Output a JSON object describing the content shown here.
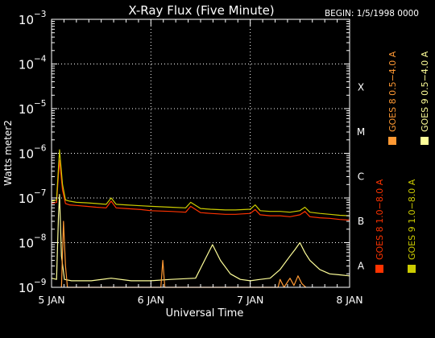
{
  "chart_data": {
    "type": "line",
    "title": "X-Ray Flux (Five Minute)",
    "begin_label": "BEGIN: 1/5/1998 0000",
    "xlabel": "Universal Time",
    "ylabel": "Watts meter2",
    "y_scale": "log",
    "ylim": [
      1e-09,
      0.001
    ],
    "xlim": [
      0,
      3
    ],
    "x_ticks": [
      {
        "v": 0,
        "label": "5 JAN"
      },
      {
        "v": 1,
        "label": "6 JAN"
      },
      {
        "v": 2,
        "label": "7 JAN"
      },
      {
        "v": 3,
        "label": "8 JAN"
      }
    ],
    "y_ticks": [
      {
        "exp": -9,
        "base": "10",
        "sup": "−9"
      },
      {
        "exp": -8,
        "base": "10",
        "sup": "−8"
      },
      {
        "exp": -7,
        "base": "10",
        "sup": "−7"
      },
      {
        "exp": -6,
        "base": "10",
        "sup": "−6"
      },
      {
        "exp": -5,
        "base": "10",
        "sup": "−5"
      },
      {
        "exp": -4,
        "base": "10",
        "sup": "−4"
      },
      {
        "exp": -3,
        "base": "10",
        "sup": "−3"
      }
    ],
    "flare_classes": [
      {
        "exp": -7.5,
        "label": "B"
      },
      {
        "exp": -6.5,
        "label": "C"
      },
      {
        "exp": -5.5,
        "label": "M"
      },
      {
        "exp": -4.5,
        "label": "X"
      },
      {
        "exp": -8.5,
        "label": "A"
      }
    ],
    "grid": true,
    "legend": [
      {
        "label": "GOES 8 1.0−8.0 A",
        "color": "#ff3300"
      },
      {
        "label": "GOES 8 0.5−4.0 A",
        "color": "#ff9933"
      },
      {
        "label": "GOES 9 1.0−8.0 A",
        "color": "#cccc00"
      },
      {
        "label": "GOES 9 0.5−4.0 A",
        "color": "#ffff99"
      }
    ],
    "series": [
      {
        "color": "#ff3300",
        "x": [
          0,
          0.05,
          0.08,
          0.11,
          0.14,
          0.18,
          0.25,
          0.35,
          0.45,
          0.55,
          0.6,
          0.65,
          0.75,
          0.9,
          1.0,
          1.2,
          1.35,
          1.4,
          1.5,
          1.6,
          1.75,
          1.85,
          2.0,
          2.05,
          2.1,
          2.2,
          2.3,
          2.4,
          2.5,
          2.55,
          2.6,
          2.7,
          2.8,
          2.9,
          3.0
        ],
        "y": [
          7.5e-08,
          8e-08,
          7e-07,
          1.5e-07,
          7.5e-08,
          7e-08,
          6.8e-08,
          6.5e-08,
          6.2e-08,
          6e-08,
          8.5e-08,
          6e-08,
          5.8e-08,
          5.5e-08,
          5.2e-08,
          5e-08,
          4.8e-08,
          6.5e-08,
          4.7e-08,
          4.5e-08,
          4.3e-08,
          4.3e-08,
          4.5e-08,
          5.5e-08,
          4.2e-08,
          4e-08,
          4e-08,
          3.8e-08,
          4.2e-08,
          5e-08,
          3.8e-08,
          3.6e-08,
          3.5e-08,
          3.3e-08,
          3.2e-08
        ]
      },
      {
        "color": "#cccc00",
        "x": [
          0,
          0.05,
          0.08,
          0.11,
          0.14,
          0.18,
          0.25,
          0.35,
          0.45,
          0.55,
          0.6,
          0.65,
          0.75,
          0.9,
          1.0,
          1.2,
          1.35,
          1.4,
          1.5,
          1.6,
          1.75,
          1.85,
          2.0,
          2.05,
          2.1,
          2.2,
          2.3,
          2.4,
          2.5,
          2.55,
          2.6,
          2.7,
          2.8,
          2.9,
          3.0
        ],
        "y": [
          8.5e-08,
          9e-08,
          1.2e-06,
          2e-07,
          9e-08,
          8.5e-08,
          8e-08,
          7.8e-08,
          7.5e-08,
          7.2e-08,
          1e-07,
          7.2e-08,
          7e-08,
          6.7e-08,
          6.5e-08,
          6.2e-08,
          6e-08,
          8e-08,
          5.8e-08,
          5.6e-08,
          5.4e-08,
          5.4e-08,
          5.6e-08,
          7e-08,
          5.2e-08,
          5e-08,
          5e-08,
          4.8e-08,
          5.2e-08,
          6.2e-08,
          4.8e-08,
          4.5e-08,
          4.3e-08,
          4.1e-08,
          4e-08
        ]
      },
      {
        "color": "#ffff99",
        "x": [
          0,
          0.05,
          0.07,
          0.08,
          0.1,
          0.13,
          0.2,
          0.4,
          0.6,
          0.8,
          1.0,
          1.2,
          1.45,
          1.62,
          1.7,
          1.8,
          1.9,
          2.0,
          2.1,
          2.2,
          2.3,
          2.4,
          2.45,
          2.5,
          2.55,
          2.6,
          2.7,
          2.8,
          2.9,
          3.0
        ],
        "y": [
          1.6e-09,
          1.5e-09,
          4e-08,
          1.2e-07,
          5e-09,
          1.5e-09,
          1.4e-09,
          1.4e-09,
          1.6e-09,
          1.4e-09,
          1.4e-09,
          1.5e-09,
          1.6e-09,
          9e-09,
          4e-09,
          2e-09,
          1.5e-09,
          1.4e-09,
          1.5e-09,
          1.6e-09,
          2.5e-09,
          5e-09,
          7e-09,
          1e-08,
          6e-09,
          4e-09,
          2.5e-09,
          2e-09,
          1.9e-09,
          1.8e-09
        ]
      },
      {
        "color": "#ff9933",
        "x": [
          0.1,
          0.12,
          0.14,
          0.16,
          1.1,
          1.12,
          1.14,
          2.28,
          2.3,
          2.34,
          2.4,
          2.44,
          2.48,
          2.52,
          2.56
        ],
        "y": [
          1e-09,
          3e-08,
          3e-09,
          1e-09,
          1e-09,
          4e-09,
          1e-09,
          1e-09,
          1.5e-09,
          1e-09,
          1.6e-09,
          1.1e-09,
          1.8e-09,
          1.2e-09,
          1e-09
        ]
      }
    ]
  }
}
